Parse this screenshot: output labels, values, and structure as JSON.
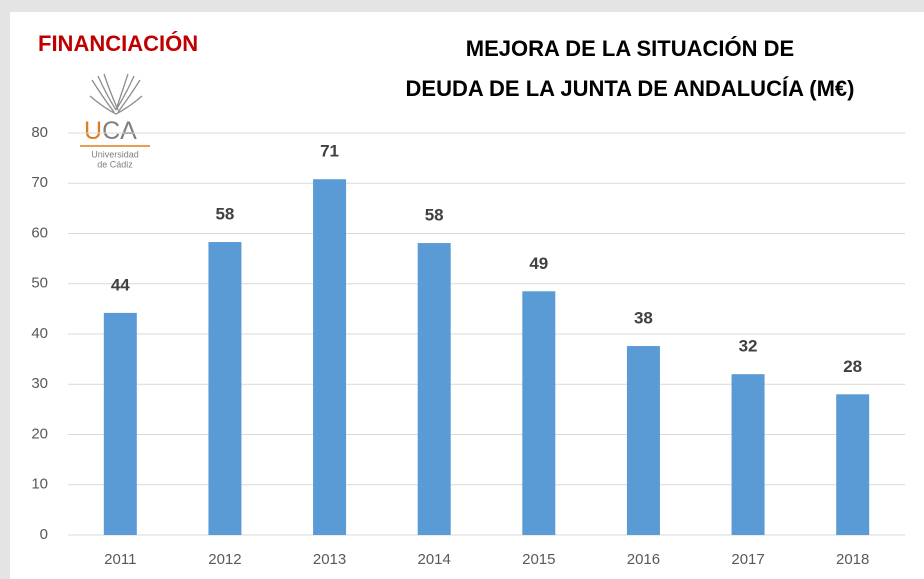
{
  "header": {
    "section": "FINANCIACIÓN",
    "logo": {
      "initial": "U",
      "rest": "CA",
      "line1": "Universidad",
      "line2": "de Cádiz"
    }
  },
  "chart_data": {
    "type": "bar",
    "title": [
      "MEJORA DE LA SITUACIÓN DE",
      "DEUDA DE LA JUNTA DE ANDALUCÍA (M€)"
    ],
    "categories": [
      "2011",
      "2012",
      "2013",
      "2014",
      "2015",
      "2016",
      "2017",
      "2018"
    ],
    "values": [
      44.2,
      58.3,
      70.8,
      58.1,
      48.5,
      37.6,
      32,
      28
    ],
    "value_labels": [
      "44",
      "58",
      "71",
      "58",
      "49",
      "38",
      "32",
      "28"
    ],
    "color": "#5b9bd5",
    "ylim": [
      0,
      80
    ],
    "yticks": [
      0,
      10,
      20,
      30,
      40,
      50,
      60,
      70,
      80
    ],
    "grid": true
  }
}
